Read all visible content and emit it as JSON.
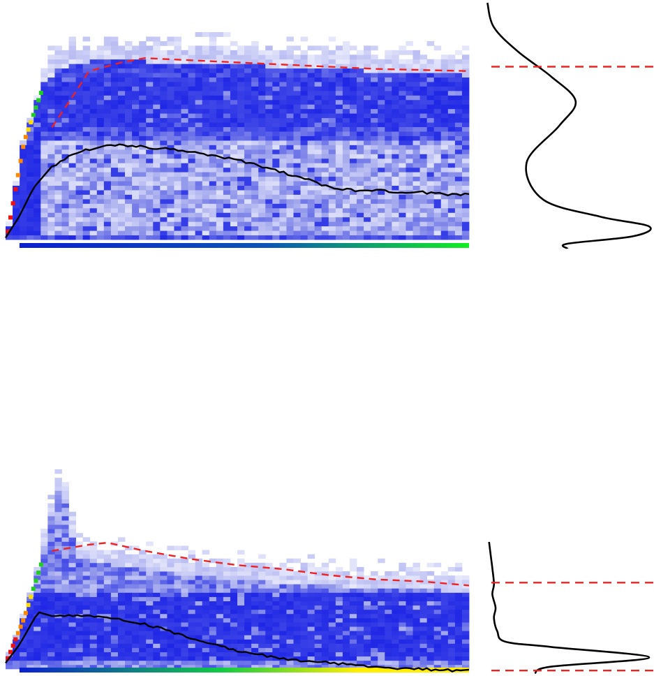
{
  "colors": {
    "heatmap_low": "#f2f3fd",
    "heatmap_mid": "#8f95ea",
    "heatmap_high": "#1f27e6",
    "saturated_high": "#0a10d8",
    "bottom_band_left": "#0b1fd0",
    "bottom_band_green": "#11ee22",
    "bottom_band_yellow": "#ffee00",
    "edge_red": "#ee1111",
    "edge_orange": "#ff8800",
    "edge_yellow": "#ffdd00",
    "edge_green": "#22cc22",
    "mean_line": "#000000",
    "threshold_line": "#ee2222",
    "density_line": "#000000"
  },
  "chart_data": [
    {
      "type": "heatmap",
      "panel": "top-left",
      "title": "",
      "xlabel": "",
      "ylabel": "",
      "grid": false,
      "x_range": [
        0,
        1
      ],
      "y_range": [
        0,
        1
      ],
      "ramp_end": 0.08,
      "top_edge": [
        [
          0.0,
          0.02
        ],
        [
          0.04,
          0.52
        ],
        [
          0.08,
          0.78
        ],
        [
          0.12,
          0.86
        ],
        [
          0.2,
          0.89
        ],
        [
          0.4,
          0.88
        ],
        [
          0.6,
          0.86
        ],
        [
          0.8,
          0.84
        ],
        [
          1.0,
          0.82
        ]
      ],
      "dark_band": [
        0.56,
        0.8
      ],
      "light_band": [
        0.07,
        0.5
      ],
      "bottom_band": [
        0.0,
        0.05
      ],
      "threshold_line": [
        [
          0.1,
          0.56
        ],
        [
          0.15,
          0.72
        ],
        [
          0.18,
          0.82
        ],
        [
          0.25,
          0.86
        ],
        [
          0.3,
          0.88
        ],
        [
          0.4,
          0.87
        ],
        [
          0.6,
          0.85
        ],
        [
          0.8,
          0.83
        ],
        [
          1.0,
          0.82
        ]
      ],
      "mean_line": [
        [
          0.0,
          0.05
        ],
        [
          0.03,
          0.15
        ],
        [
          0.06,
          0.28
        ],
        [
          0.1,
          0.38
        ],
        [
          0.15,
          0.44
        ],
        [
          0.2,
          0.47
        ],
        [
          0.25,
          0.48
        ],
        [
          0.3,
          0.47
        ],
        [
          0.35,
          0.46
        ],
        [
          0.4,
          0.45
        ],
        [
          0.45,
          0.43
        ],
        [
          0.5,
          0.41
        ],
        [
          0.55,
          0.38
        ],
        [
          0.6,
          0.35
        ],
        [
          0.65,
          0.32
        ],
        [
          0.7,
          0.28
        ],
        [
          0.75,
          0.27
        ],
        [
          0.8,
          0.27
        ],
        [
          0.85,
          0.26
        ],
        [
          0.9,
          0.26
        ],
        [
          0.95,
          0.25
        ],
        [
          1.0,
          0.25
        ]
      ]
    },
    {
      "type": "line",
      "panel": "top-right",
      "title": "",
      "xlabel": "",
      "ylabel": "",
      "grid": false,
      "x_range": [
        0,
        1
      ],
      "y_range": [
        0,
        1
      ],
      "x": [
        0.01,
        0.05,
        0.2,
        0.4,
        0.55,
        0.45,
        0.25,
        0.35,
        0.7,
        1.0,
        0.9,
        0.5,
        0.5
      ],
      "y": [
        1.0,
        0.9,
        0.8,
        0.7,
        0.6,
        0.5,
        0.35,
        0.2,
        0.13,
        0.09,
        0.05,
        0.02,
        0.0
      ],
      "threshold_y": 0.74
    },
    {
      "type": "heatmap",
      "panel": "bottom-left",
      "title": "",
      "xlabel": "",
      "ylabel": "",
      "grid": false,
      "x_range": [
        0,
        1
      ],
      "y_range": [
        0,
        1
      ],
      "ramp_end": 0.08,
      "top_edge": [
        [
          0.0,
          0.05
        ],
        [
          0.04,
          0.3
        ],
        [
          0.08,
          0.62
        ],
        [
          0.12,
          0.98
        ],
        [
          0.15,
          0.6
        ],
        [
          0.2,
          0.56
        ],
        [
          0.4,
          0.5
        ],
        [
          0.6,
          0.46
        ],
        [
          0.8,
          0.44
        ],
        [
          1.0,
          0.42
        ]
      ],
      "dark_band": [
        0.06,
        0.4
      ],
      "bottom_band": [
        0.0,
        0.03
      ],
      "threshold_line": [
        [
          0.1,
          0.6
        ],
        [
          0.18,
          0.63
        ],
        [
          0.22,
          0.64
        ],
        [
          0.3,
          0.6
        ],
        [
          0.4,
          0.56
        ],
        [
          0.5,
          0.53
        ],
        [
          0.6,
          0.51
        ],
        [
          0.7,
          0.48
        ],
        [
          0.8,
          0.46
        ],
        [
          0.9,
          0.45
        ],
        [
          1.0,
          0.43
        ]
      ],
      "mean_line": [
        [
          0.0,
          0.05
        ],
        [
          0.03,
          0.14
        ],
        [
          0.07,
          0.3
        ],
        [
          0.1,
          0.28
        ],
        [
          0.15,
          0.28
        ],
        [
          0.2,
          0.28
        ],
        [
          0.25,
          0.26
        ],
        [
          0.3,
          0.24
        ],
        [
          0.35,
          0.21
        ],
        [
          0.4,
          0.17
        ],
        [
          0.45,
          0.14
        ],
        [
          0.5,
          0.11
        ],
        [
          0.55,
          0.09
        ],
        [
          0.6,
          0.07
        ],
        [
          0.65,
          0.06
        ],
        [
          0.7,
          0.05
        ],
        [
          0.75,
          0.04
        ],
        [
          0.8,
          0.03
        ],
        [
          0.85,
          0.025
        ],
        [
          0.9,
          0.02
        ],
        [
          0.95,
          0.015
        ],
        [
          1.0,
          0.012
        ]
      ]
    },
    {
      "type": "line",
      "panel": "bottom-right",
      "title": "",
      "xlabel": "",
      "ylabel": "",
      "grid": false,
      "x_range": [
        0,
        1
      ],
      "y_range": [
        0,
        1
      ],
      "x": [
        0.02,
        0.03,
        0.04,
        0.05,
        0.04,
        0.06,
        0.05,
        0.07,
        0.12,
        0.4,
        1.0,
        0.4,
        0.3
      ],
      "y": [
        1.0,
        0.9,
        0.8,
        0.68,
        0.6,
        0.5,
        0.42,
        0.32,
        0.24,
        0.2,
        0.12,
        0.05,
        0.0
      ],
      "threshold_y": [
        0.69,
        0.02
      ]
    }
  ]
}
